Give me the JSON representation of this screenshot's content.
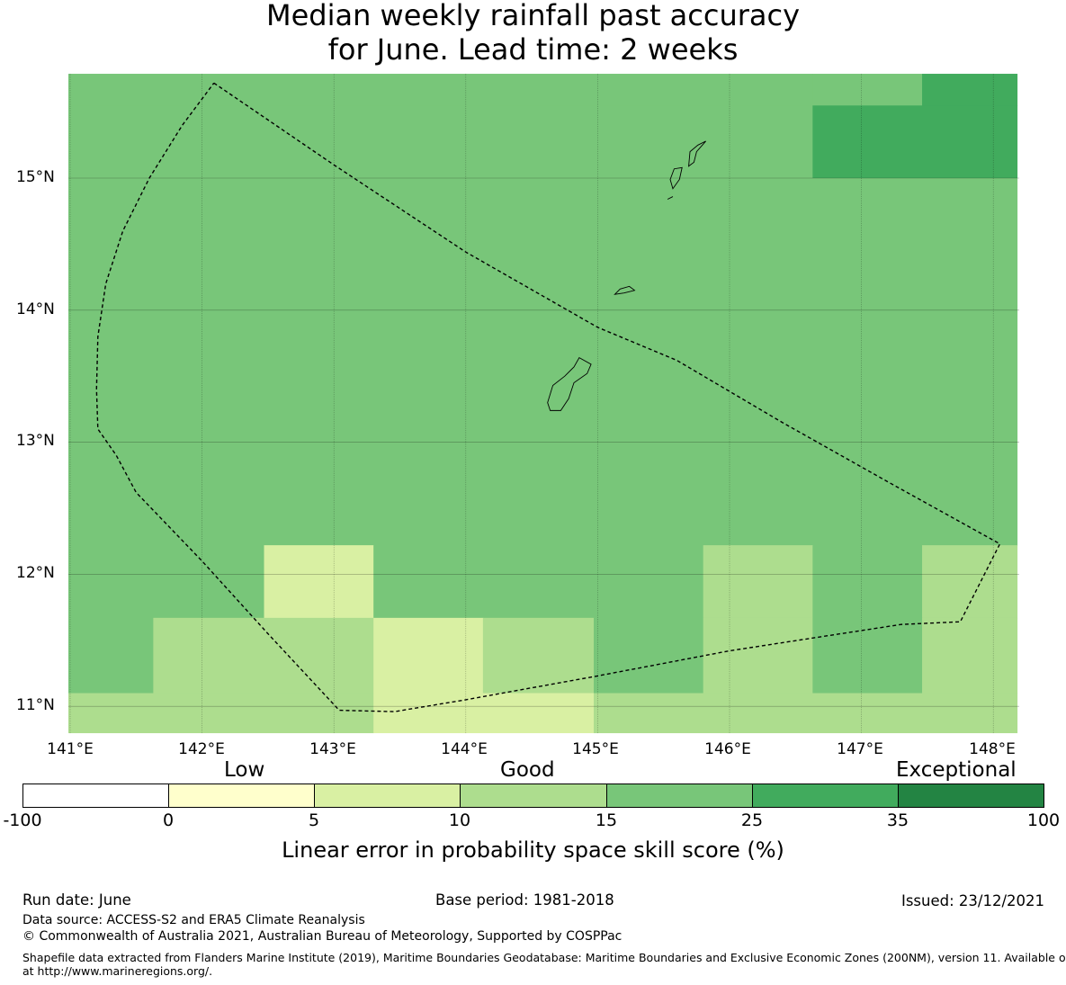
{
  "title": {
    "line1": "Median weekly rainfall past accuracy",
    "line2": "for June. Lead time: 2 weeks"
  },
  "map": {
    "lat_labels": [
      "15°N",
      "14°N",
      "13°N",
      "12°N",
      "11°N"
    ],
    "lon_labels": [
      "141°E",
      "142°E",
      "143°E",
      "144°E",
      "145°E",
      "146°E",
      "147°E",
      "148°E"
    ],
    "grid": true,
    "skill_cells": [
      {
        "lon": [
          140.97,
          146.63
        ],
        "lat": [
          15.55,
          15.79
        ],
        "skill": "15-25"
      },
      {
        "lon": [
          146.63,
          147.46
        ],
        "lat": [
          15.55,
          15.79
        ],
        "skill": "15-25"
      },
      {
        "lon": [
          147.46,
          148.18
        ],
        "lat": [
          15.55,
          15.79
        ],
        "skill": "25-35"
      },
      {
        "lon": [
          140.97,
          146.63
        ],
        "lat": [
          15.0,
          15.55
        ],
        "skill": "15-25"
      },
      {
        "lon": [
          146.63,
          148.18
        ],
        "lat": [
          15.0,
          15.55
        ],
        "skill": "25-35"
      },
      {
        "lon": [
          140.97,
          148.18
        ],
        "lat": [
          12.22,
          15.0
        ],
        "skill": "15-25"
      },
      {
        "lon": [
          140.97,
          142.47
        ],
        "lat": [
          11.67,
          12.22
        ],
        "skill": "15-25"
      },
      {
        "lon": [
          142.47,
          143.3
        ],
        "lat": [
          11.67,
          12.22
        ],
        "skill": "5-10"
      },
      {
        "lon": [
          143.3,
          145.8
        ],
        "lat": [
          11.67,
          12.22
        ],
        "skill": "15-25"
      },
      {
        "lon": [
          145.8,
          146.63
        ],
        "lat": [
          11.67,
          12.22
        ],
        "skill": "10-15"
      },
      {
        "lon": [
          146.63,
          147.46
        ],
        "lat": [
          11.67,
          12.22
        ],
        "skill": "15-25"
      },
      {
        "lon": [
          147.46,
          148.18
        ],
        "lat": [
          11.67,
          12.22
        ],
        "skill": "10-15"
      },
      {
        "lon": [
          140.97,
          141.63
        ],
        "lat": [
          11.1,
          11.67
        ],
        "skill": "15-25"
      },
      {
        "lon": [
          141.63,
          143.3
        ],
        "lat": [
          11.1,
          11.67
        ],
        "skill": "10-15"
      },
      {
        "lon": [
          143.3,
          144.13
        ],
        "lat": [
          11.1,
          11.67
        ],
        "skill": "5-10"
      },
      {
        "lon": [
          144.13,
          144.97
        ],
        "lat": [
          11.1,
          11.67
        ],
        "skill": "10-15"
      },
      {
        "lon": [
          144.97,
          145.8
        ],
        "lat": [
          11.1,
          11.67
        ],
        "skill": "15-25"
      },
      {
        "lon": [
          145.8,
          146.63
        ],
        "lat": [
          11.1,
          11.67
        ],
        "skill": "10-15"
      },
      {
        "lon": [
          146.63,
          147.46
        ],
        "lat": [
          11.1,
          11.67
        ],
        "skill": "15-25"
      },
      {
        "lon": [
          147.46,
          148.18
        ],
        "lat": [
          11.1,
          11.67
        ],
        "skill": "10-15"
      },
      {
        "lon": [
          140.97,
          143.3
        ],
        "lat": [
          10.8,
          11.1
        ],
        "skill": "10-15"
      },
      {
        "lon": [
          143.3,
          144.97
        ],
        "lat": [
          10.8,
          11.1
        ],
        "skill": "5-10"
      },
      {
        "lon": [
          144.97,
          148.18
        ],
        "lat": [
          10.8,
          11.1
        ],
        "skill": "10-15"
      }
    ],
    "eez_boundary": [
      [
        142.09,
        15.72
      ],
      [
        143.0,
        15.1
      ],
      [
        144.0,
        14.44
      ],
      [
        145.0,
        13.87
      ],
      [
        145.6,
        13.62
      ],
      [
        146.4,
        13.15
      ],
      [
        147.2,
        12.7
      ],
      [
        148.05,
        12.23
      ],
      [
        147.75,
        11.64
      ],
      [
        147.3,
        11.62
      ],
      [
        146.0,
        11.42
      ],
      [
        145.0,
        11.23
      ],
      [
        144.0,
        11.05
      ],
      [
        143.46,
        10.96
      ],
      [
        143.04,
        10.97
      ],
      [
        142.5,
        11.55
      ],
      [
        142.0,
        12.1
      ],
      [
        141.5,
        12.62
      ],
      [
        141.35,
        12.9
      ],
      [
        141.21,
        13.1
      ],
      [
        141.2,
        13.4
      ],
      [
        141.21,
        13.8
      ],
      [
        141.27,
        14.2
      ],
      [
        141.4,
        14.6
      ],
      [
        141.6,
        15.0
      ],
      [
        141.85,
        15.4
      ],
      [
        142.09,
        15.72
      ]
    ],
    "islands": [
      {
        "name": "Guam",
        "outline": [
          [
            144.64,
            13.24
          ],
          [
            144.62,
            13.3
          ],
          [
            144.66,
            13.43
          ],
          [
            144.75,
            13.5
          ],
          [
            144.82,
            13.57
          ],
          [
            144.86,
            13.64
          ],
          [
            144.95,
            13.59
          ],
          [
            144.92,
            13.52
          ],
          [
            144.82,
            13.45
          ],
          [
            144.78,
            13.33
          ],
          [
            144.72,
            13.24
          ],
          [
            144.64,
            13.24
          ]
        ]
      },
      {
        "name": "Rota",
        "outline": [
          [
            145.13,
            14.12
          ],
          [
            145.17,
            14.16
          ],
          [
            145.24,
            14.18
          ],
          [
            145.28,
            14.15
          ],
          [
            145.2,
            14.13
          ],
          [
            145.13,
            14.12
          ]
        ]
      },
      {
        "name": "Tinian",
        "outline": [
          [
            145.57,
            14.92
          ],
          [
            145.62,
            14.99
          ],
          [
            145.64,
            15.08
          ],
          [
            145.58,
            15.07
          ],
          [
            145.55,
            14.99
          ],
          [
            145.57,
            14.92
          ]
        ]
      },
      {
        "name": "Saipan",
        "outline": [
          [
            145.69,
            15.09
          ],
          [
            145.73,
            15.12
          ],
          [
            145.75,
            15.2
          ],
          [
            145.82,
            15.28
          ],
          [
            145.76,
            15.25
          ],
          [
            145.7,
            15.2
          ],
          [
            145.69,
            15.09
          ]
        ]
      },
      {
        "name": "Aguijan",
        "outline": [
          [
            145.53,
            14.84
          ],
          [
            145.57,
            14.86
          ],
          [
            145.55,
            14.85
          ],
          [
            145.53,
            14.84
          ]
        ]
      }
    ]
  },
  "colorbar": {
    "categories": [
      "Low",
      "Good",
      "Exceptional"
    ],
    "bins": [
      {
        "range": "-100-0",
        "color": "#ffffff"
      },
      {
        "range": "0-5",
        "color": "#ffffcc"
      },
      {
        "range": "5-10",
        "color": "#d9f0a3"
      },
      {
        "range": "10-15",
        "color": "#addd8e"
      },
      {
        "range": "15-25",
        "color": "#78c679"
      },
      {
        "range": "25-35",
        "color": "#41ab5d"
      },
      {
        "range": "35-100",
        "color": "#238443"
      }
    ],
    "ticks": [
      "-100",
      "0",
      "5",
      "10",
      "15",
      "25",
      "35",
      "100"
    ],
    "label": "Linear error in probability space skill score (%)"
  },
  "footer": {
    "run_date": "Run date: June",
    "base_period": "Base period: 1981-2018",
    "issued": "Issued: 23/12/2021",
    "data_source": "Data source: ACCESS-S2 and ERA5 Climate Reanalysis",
    "copyright": "© Commonwealth of Australia 2021, Australian Bureau of Meteorology, Supported by COSPPac",
    "shapefile_line1": "Shapefile data extracted from Flanders Marine Institute (2019), Maritime Boundaries Geodatabase: Maritime Boundaries and Exclusive Economic Zones (200NM), version 11. Available online",
    "shapefile_line2": "at http://www.marineregions.org/."
  }
}
